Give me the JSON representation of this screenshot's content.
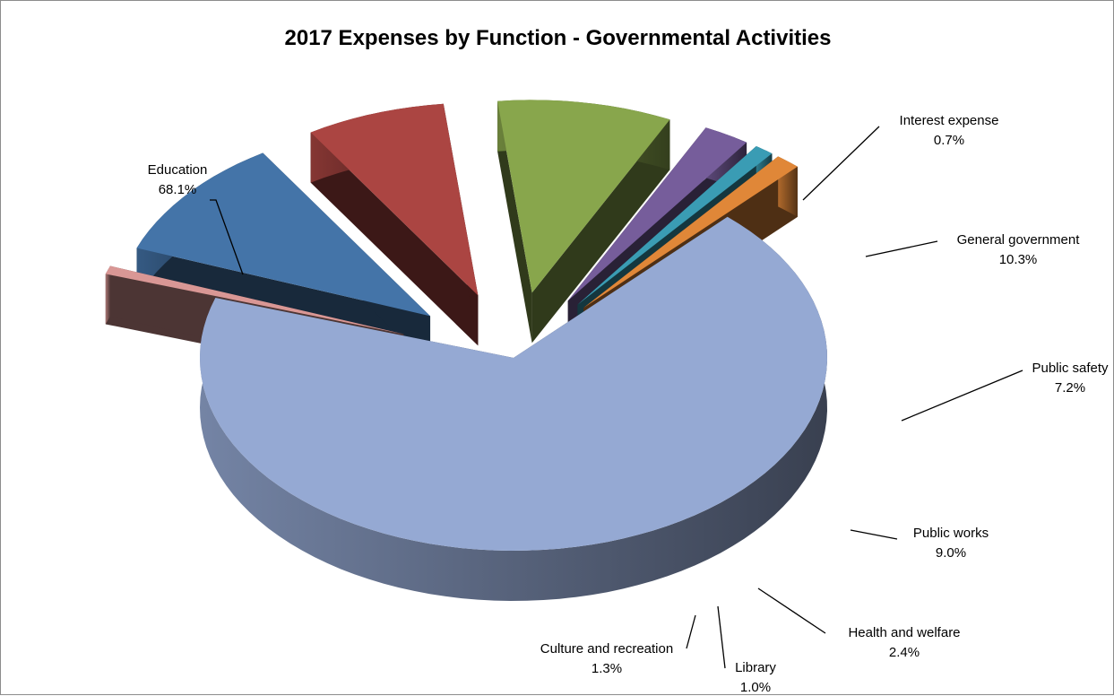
{
  "chart_data": {
    "type": "pie",
    "title": "2017 Expenses by Function - Governmental Activities",
    "categories": [
      "Education",
      "Interest expense",
      "General government",
      "Public safety",
      "Public works",
      "Health and welfare",
      "Library",
      "Culture and recreation"
    ],
    "values": [
      68.1,
      0.7,
      10.3,
      7.2,
      9.0,
      2.4,
      1.0,
      1.3
    ],
    "value_labels": [
      "68.1%",
      "0.7%",
      "10.3%",
      "7.2%",
      "9.0%",
      "2.4%",
      "1.0%",
      "1.3%"
    ],
    "colors": [
      "#95a9d3",
      "#d99795",
      "#4474a8",
      "#ab4542",
      "#88a64c",
      "#765d9b",
      "#3a9cb4",
      "#e08738"
    ],
    "style": "3d-exploded",
    "legend": "none"
  }
}
